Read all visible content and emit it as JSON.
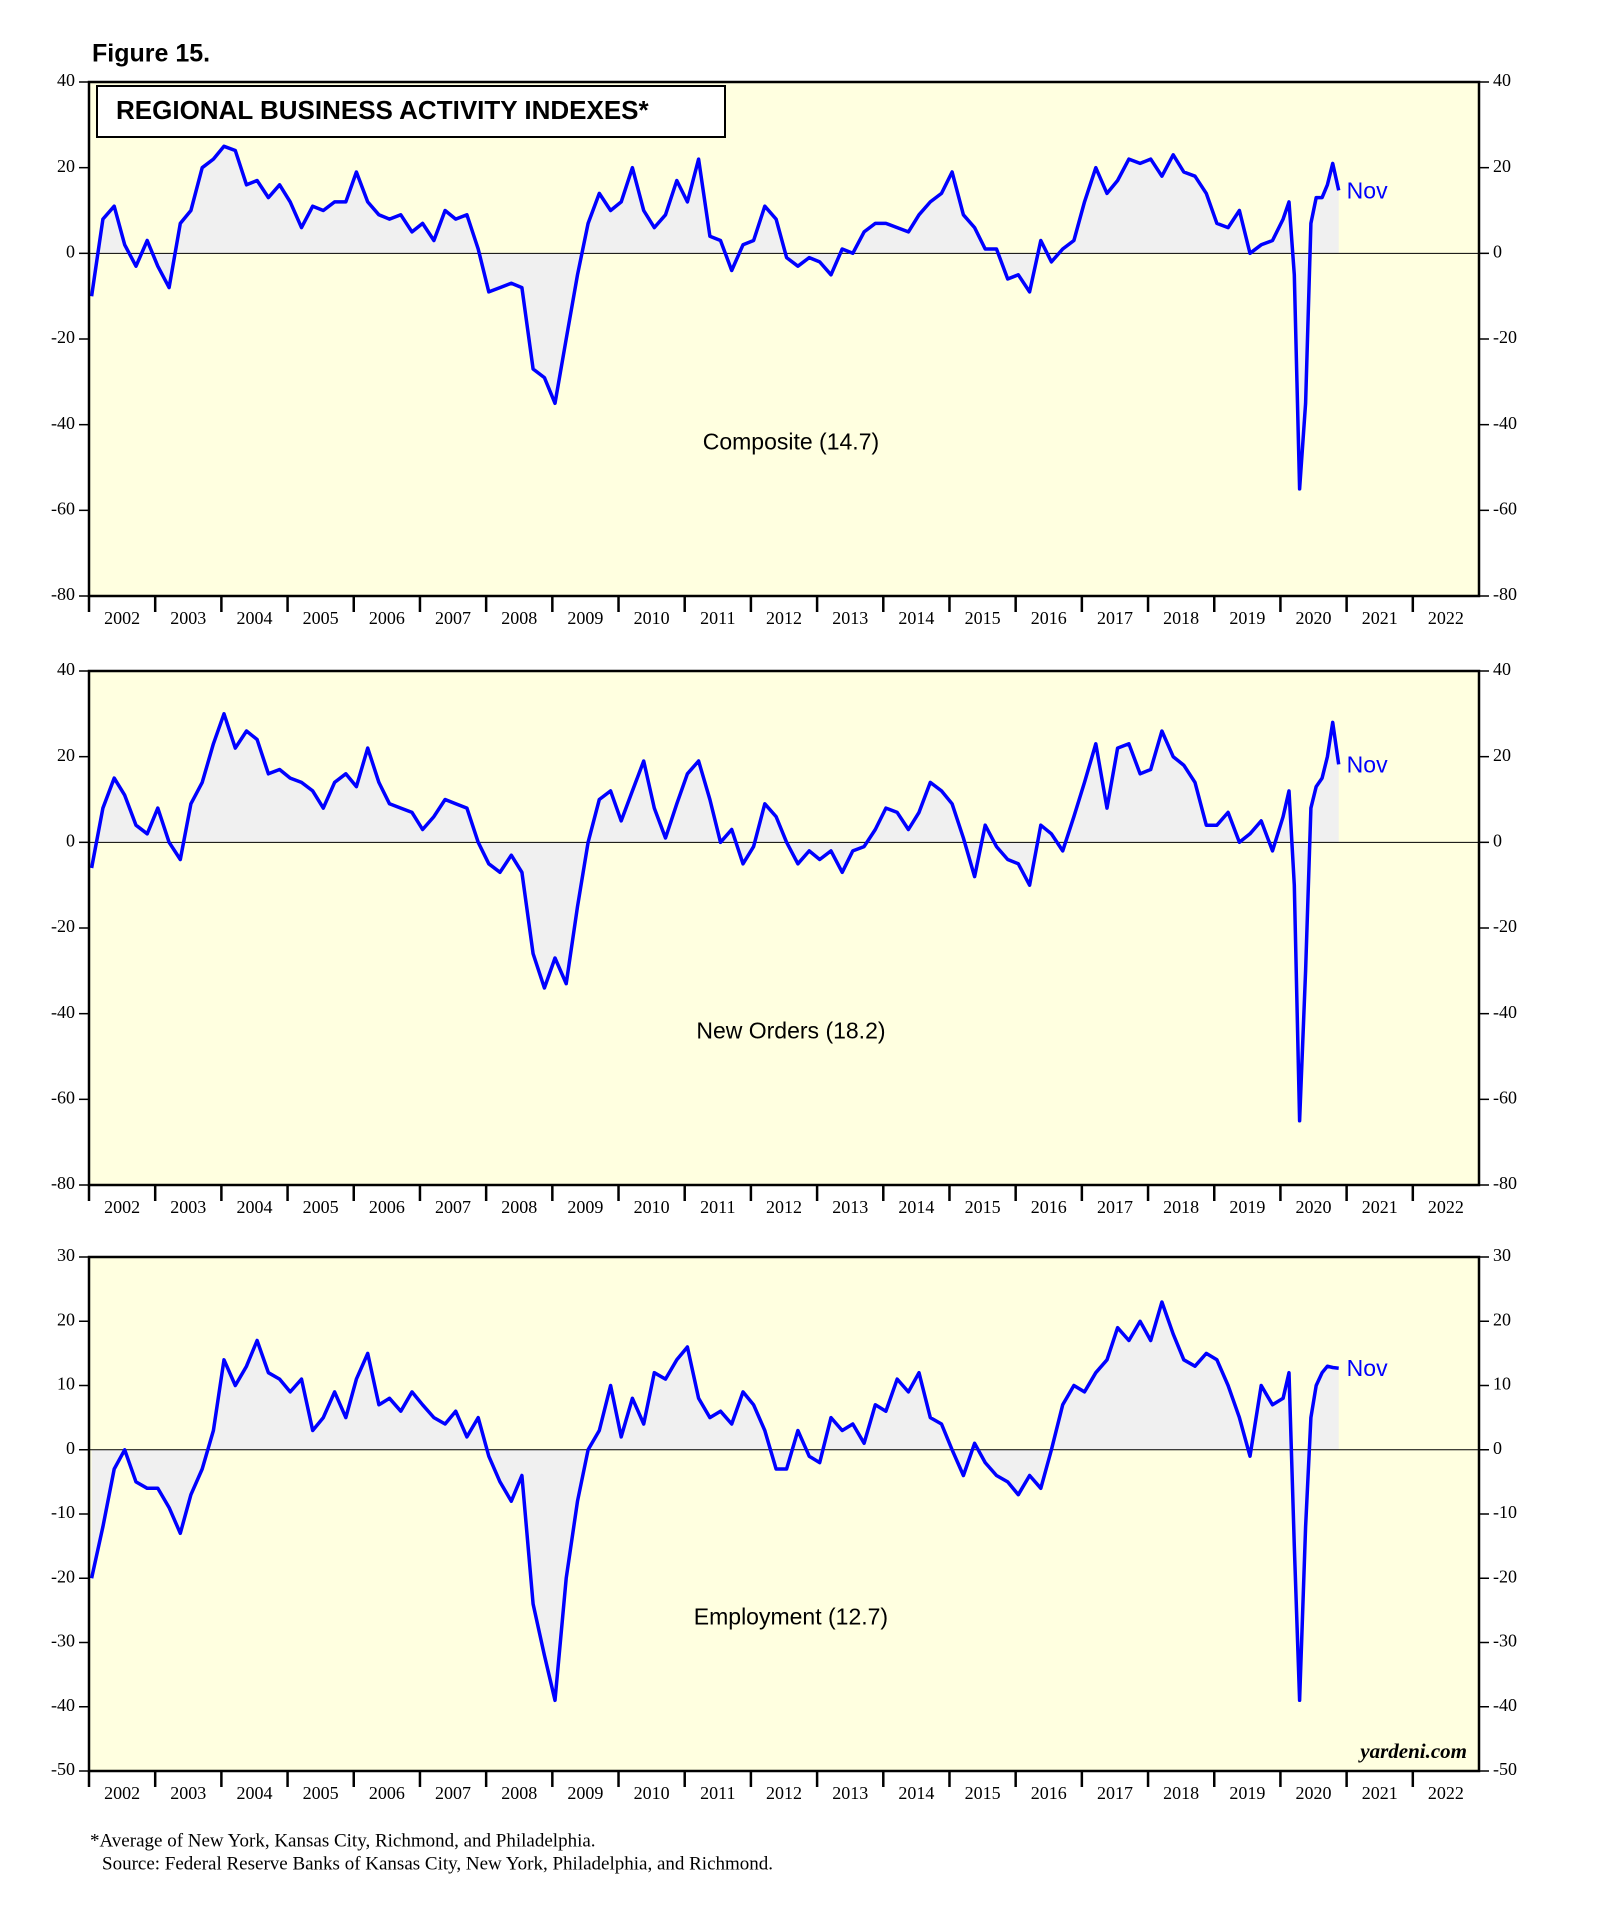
{
  "figure_label": "Figure 15.",
  "title": "REGIONAL BUSINESS ACTIVITY INDEXES*",
  "footnote": "*Average of New York, Kansas City, Richmond, and Philadelphia.",
  "source": "Source: Federal Reserve Banks of Kansas City, New York, Philadelphia, and Richmond.",
  "credit": "yardeni.com",
  "chart_data": [
    {
      "type": "line",
      "annotation": "Composite (14.7)",
      "end_label": "Nov",
      "xlim": [
        2002,
        2023
      ],
      "xticks": [
        2002,
        2003,
        2004,
        2005,
        2006,
        2007,
        2008,
        2009,
        2010,
        2011,
        2012,
        2013,
        2014,
        2015,
        2016,
        2017,
        2018,
        2019,
        2020,
        2021,
        2022
      ],
      "ylim": [
        -80,
        40
      ],
      "yticks": [
        -80,
        -60,
        -40,
        -20,
        0,
        20,
        40
      ],
      "area_color": "#f0f0f0",
      "x": [
        2002.04,
        2002.21,
        2002.38,
        2002.54,
        2002.71,
        2002.88,
        2003.04,
        2003.21,
        2003.38,
        2003.54,
        2003.71,
        2003.88,
        2004.04,
        2004.21,
        2004.38,
        2004.54,
        2004.71,
        2004.88,
        2005.04,
        2005.21,
        2005.38,
        2005.54,
        2005.71,
        2005.88,
        2006.04,
        2006.21,
        2006.38,
        2006.54,
        2006.71,
        2006.88,
        2007.04,
        2007.21,
        2007.38,
        2007.54,
        2007.71,
        2007.88,
        2008.04,
        2008.21,
        2008.38,
        2008.54,
        2008.71,
        2008.88,
        2009.04,
        2009.21,
        2009.38,
        2009.54,
        2009.71,
        2009.88,
        2010.04,
        2010.21,
        2010.38,
        2010.54,
        2010.71,
        2010.88,
        2011.04,
        2011.21,
        2011.38,
        2011.54,
        2011.71,
        2011.88,
        2012.04,
        2012.21,
        2012.38,
        2012.54,
        2012.71,
        2012.88,
        2013.04,
        2013.21,
        2013.38,
        2013.54,
        2013.71,
        2013.88,
        2014.04,
        2014.21,
        2014.38,
        2014.54,
        2014.71,
        2014.88,
        2015.04,
        2015.21,
        2015.38,
        2015.54,
        2015.71,
        2015.88,
        2016.04,
        2016.21,
        2016.38,
        2016.54,
        2016.71,
        2016.88,
        2017.04,
        2017.21,
        2017.38,
        2017.54,
        2017.71,
        2017.88,
        2018.04,
        2018.21,
        2018.38,
        2018.54,
        2018.71,
        2018.88,
        2019.04,
        2019.21,
        2019.38,
        2019.54,
        2019.71,
        2019.88,
        2020.04,
        2020.13,
        2020.21,
        2020.29,
        2020.38,
        2020.46,
        2020.54,
        2020.63,
        2020.71,
        2020.79,
        2020.88
      ],
      "series": [
        {
          "name": "Composite",
          "color": "#0000ff",
          "values": [
            -10,
            8,
            11,
            2,
            -3,
            3,
            -3,
            -8,
            7,
            10,
            20,
            22,
            25,
            24,
            16,
            17,
            13,
            16,
            12,
            6,
            11,
            10,
            12,
            12,
            19,
            12,
            9,
            8,
            9,
            5,
            7,
            3,
            10,
            8,
            9,
            1,
            -9,
            -8,
            -7,
            -8,
            -27,
            -29,
            -35,
            -20,
            -5,
            7,
            14,
            10,
            12,
            20,
            10,
            6,
            9,
            17,
            12,
            22,
            4,
            3,
            -4,
            2,
            3,
            11,
            8,
            -1,
            -3,
            -1,
            -2,
            -5,
            1,
            0,
            5,
            7,
            7,
            6,
            5,
            9,
            12,
            14,
            19,
            9,
            6,
            1,
            1,
            -6,
            -5,
            -9,
            3,
            -2,
            1,
            3,
            12,
            20,
            14,
            17,
            22,
            21,
            22,
            18,
            23,
            19,
            18,
            14,
            7,
            6,
            10,
            0,
            2,
            3,
            8,
            12,
            -5,
            -55,
            -35,
            7,
            13,
            13,
            16,
            21,
            14.7
          ]
        }
      ]
    },
    {
      "type": "line",
      "annotation": "New Orders (18.2)",
      "end_label": "Nov",
      "xlim": [
        2002,
        2023
      ],
      "xticks": [
        2002,
        2003,
        2004,
        2005,
        2006,
        2007,
        2008,
        2009,
        2010,
        2011,
        2012,
        2013,
        2014,
        2015,
        2016,
        2017,
        2018,
        2019,
        2020,
        2021,
        2022
      ],
      "ylim": [
        -80,
        40
      ],
      "yticks": [
        -80,
        -60,
        -40,
        -20,
        0,
        20,
        40
      ],
      "area_color": "#f0f0f0",
      "x": [
        2002.04,
        2002.21,
        2002.38,
        2002.54,
        2002.71,
        2002.88,
        2003.04,
        2003.21,
        2003.38,
        2003.54,
        2003.71,
        2003.88,
        2004.04,
        2004.21,
        2004.38,
        2004.54,
        2004.71,
        2004.88,
        2005.04,
        2005.21,
        2005.38,
        2005.54,
        2005.71,
        2005.88,
        2006.04,
        2006.21,
        2006.38,
        2006.54,
        2006.71,
        2006.88,
        2007.04,
        2007.21,
        2007.38,
        2007.54,
        2007.71,
        2007.88,
        2008.04,
        2008.21,
        2008.38,
        2008.54,
        2008.71,
        2008.88,
        2009.04,
        2009.21,
        2009.38,
        2009.54,
        2009.71,
        2009.88,
        2010.04,
        2010.21,
        2010.38,
        2010.54,
        2010.71,
        2010.88,
        2011.04,
        2011.21,
        2011.38,
        2011.54,
        2011.71,
        2011.88,
        2012.04,
        2012.21,
        2012.38,
        2012.54,
        2012.71,
        2012.88,
        2013.04,
        2013.21,
        2013.38,
        2013.54,
        2013.71,
        2013.88,
        2014.04,
        2014.21,
        2014.38,
        2014.54,
        2014.71,
        2014.88,
        2015.04,
        2015.21,
        2015.38,
        2015.54,
        2015.71,
        2015.88,
        2016.04,
        2016.21,
        2016.38,
        2016.54,
        2016.71,
        2016.88,
        2017.04,
        2017.21,
        2017.38,
        2017.54,
        2017.71,
        2017.88,
        2018.04,
        2018.21,
        2018.38,
        2018.54,
        2018.71,
        2018.88,
        2019.04,
        2019.21,
        2019.38,
        2019.54,
        2019.71,
        2019.88,
        2020.04,
        2020.13,
        2020.21,
        2020.29,
        2020.38,
        2020.46,
        2020.54,
        2020.63,
        2020.71,
        2020.79,
        2020.88
      ],
      "series": [
        {
          "name": "New Orders",
          "color": "#0000ff",
          "values": [
            -6,
            8,
            15,
            11,
            4,
            2,
            8,
            0,
            -4,
            9,
            14,
            23,
            30,
            22,
            26,
            24,
            16,
            17,
            15,
            14,
            12,
            8,
            14,
            16,
            13,
            22,
            14,
            9,
            8,
            7,
            3,
            6,
            10,
            9,
            8,
            0,
            -5,
            -7,
            -3,
            -7,
            -26,
            -34,
            -27,
            -33,
            -15,
            0,
            10,
            12,
            5,
            12,
            19,
            8,
            1,
            9,
            16,
            19,
            10,
            0,
            3,
            -5,
            -1,
            9,
            6,
            0,
            -5,
            -2,
            -4,
            -2,
            -7,
            -2,
            -1,
            3,
            8,
            7,
            3,
            7,
            14,
            12,
            9,
            1,
            -8,
            4,
            -1,
            -4,
            -5,
            -10,
            4,
            2,
            -2,
            6,
            14,
            23,
            8,
            22,
            23,
            16,
            17,
            26,
            20,
            18,
            14,
            4,
            4,
            7,
            0,
            2,
            5,
            -2,
            6,
            12,
            -10,
            -65,
            -30,
            8,
            13,
            15,
            20,
            28,
            18.2
          ]
        }
      ]
    },
    {
      "type": "line",
      "annotation": "Employment (12.7)",
      "end_label": "Nov",
      "xlim": [
        2002,
        2023
      ],
      "xticks": [
        2002,
        2003,
        2004,
        2005,
        2006,
        2007,
        2008,
        2009,
        2010,
        2011,
        2012,
        2013,
        2014,
        2015,
        2016,
        2017,
        2018,
        2019,
        2020,
        2021,
        2022
      ],
      "ylim": [
        -50,
        30
      ],
      "yticks": [
        -50,
        -40,
        -30,
        -20,
        -10,
        0,
        10,
        20,
        30
      ],
      "area_color": "#f0f0f0",
      "x": [
        2002.04,
        2002.21,
        2002.38,
        2002.54,
        2002.71,
        2002.88,
        2003.04,
        2003.21,
        2003.38,
        2003.54,
        2003.71,
        2003.88,
        2004.04,
        2004.21,
        2004.38,
        2004.54,
        2004.71,
        2004.88,
        2005.04,
        2005.21,
        2005.38,
        2005.54,
        2005.71,
        2005.88,
        2006.04,
        2006.21,
        2006.38,
        2006.54,
        2006.71,
        2006.88,
        2007.04,
        2007.21,
        2007.38,
        2007.54,
        2007.71,
        2007.88,
        2008.04,
        2008.21,
        2008.38,
        2008.54,
        2008.71,
        2008.88,
        2009.04,
        2009.21,
        2009.38,
        2009.54,
        2009.71,
        2009.88,
        2010.04,
        2010.21,
        2010.38,
        2010.54,
        2010.71,
        2010.88,
        2011.04,
        2011.21,
        2011.38,
        2011.54,
        2011.71,
        2011.88,
        2012.04,
        2012.21,
        2012.38,
        2012.54,
        2012.71,
        2012.88,
        2013.04,
        2013.21,
        2013.38,
        2013.54,
        2013.71,
        2013.88,
        2014.04,
        2014.21,
        2014.38,
        2014.54,
        2014.71,
        2014.88,
        2015.04,
        2015.21,
        2015.38,
        2015.54,
        2015.71,
        2015.88,
        2016.04,
        2016.21,
        2016.38,
        2016.54,
        2016.71,
        2016.88,
        2017.04,
        2017.21,
        2017.38,
        2017.54,
        2017.71,
        2017.88,
        2018.04,
        2018.21,
        2018.38,
        2018.54,
        2018.71,
        2018.88,
        2019.04,
        2019.21,
        2019.38,
        2019.54,
        2019.71,
        2019.88,
        2020.04,
        2020.13,
        2020.21,
        2020.29,
        2020.38,
        2020.46,
        2020.54,
        2020.63,
        2020.71,
        2020.79,
        2020.88
      ],
      "series": [
        {
          "name": "Employment",
          "color": "#0000ff",
          "values": [
            -20,
            -12,
            -3,
            0,
            -5,
            -6,
            -6,
            -9,
            -13,
            -7,
            -3,
            3,
            14,
            10,
            13,
            17,
            12,
            11,
            9,
            11,
            3,
            5,
            9,
            5,
            11,
            15,
            7,
            8,
            6,
            9,
            7,
            5,
            4,
            6,
            2,
            5,
            -1,
            -5,
            -8,
            -4,
            -24,
            -32,
            -39,
            -20,
            -8,
            0,
            3,
            10,
            2,
            8,
            4,
            12,
            11,
            14,
            16,
            8,
            5,
            6,
            4,
            9,
            7,
            3,
            -3,
            -3,
            3,
            -1,
            -2,
            5,
            3,
            4,
            1,
            7,
            6,
            11,
            9,
            12,
            5,
            4,
            0,
            -4,
            1,
            -2,
            -4,
            -5,
            -7,
            -4,
            -6,
            0,
            7,
            10,
            9,
            12,
            14,
            19,
            17,
            20,
            17,
            23,
            18,
            14,
            13,
            15,
            14,
            10,
            5,
            -1,
            10,
            7,
            8,
            12,
            -15,
            -39,
            -12,
            5,
            10,
            12,
            13,
            12.8,
            12.7
          ]
        }
      ]
    }
  ]
}
